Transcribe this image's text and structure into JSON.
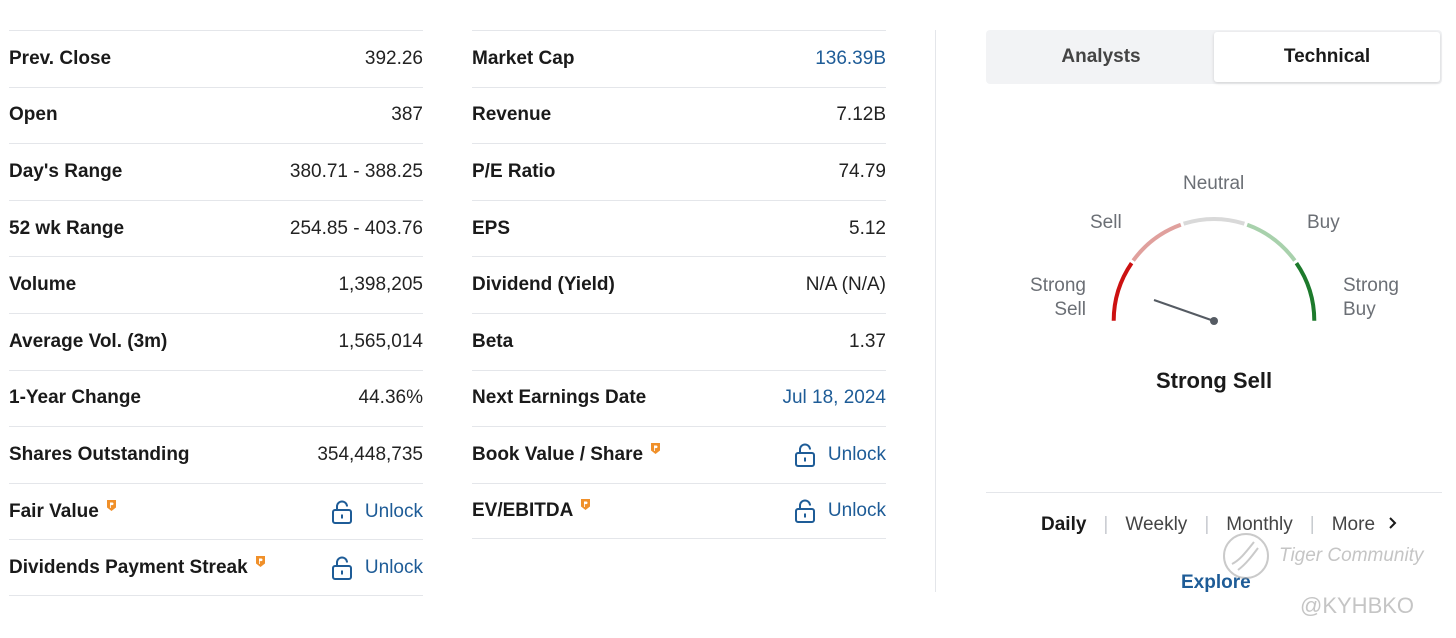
{
  "left_table": [
    {
      "label": "Prev. Close",
      "value": "392.26"
    },
    {
      "label": "Open",
      "value": "387"
    },
    {
      "label": "Day's Range",
      "value": "380.71 - 388.25"
    },
    {
      "label": "52 wk Range",
      "value": "254.85 - 403.76"
    },
    {
      "label": "Volume",
      "value": "1,398,205"
    },
    {
      "label": "Average Vol. (3m)",
      "value": "1,565,014"
    },
    {
      "label": "1-Year Change",
      "value": "44.36%"
    },
    {
      "label": "Shares Outstanding",
      "value": "354,448,735"
    },
    {
      "label": "Fair Value",
      "value": "Unlock"
    },
    {
      "label": "Dividends Payment Streak",
      "value": "Unlock"
    }
  ],
  "mid_table": [
    {
      "label": "Market Cap",
      "value": "136.39B"
    },
    {
      "label": "Revenue",
      "value": "7.12B"
    },
    {
      "label": "P/E Ratio",
      "value": "74.79"
    },
    {
      "label": "EPS",
      "value": "5.12"
    },
    {
      "label": "Dividend (Yield)",
      "value": "N/A (N/A)"
    },
    {
      "label": "Beta",
      "value": "1.37"
    },
    {
      "label": "Next Earnings Date",
      "value": "Jul 18, 2024"
    },
    {
      "label": "Book Value / Share",
      "value": "Unlock"
    },
    {
      "label": "EV/EBITDA",
      "value": "Unlock"
    }
  ],
  "tabs": {
    "analysts": "Analysts",
    "technical": "Technical",
    "active": "technical"
  },
  "gauge": {
    "strong_sell_1": "Strong",
    "strong_sell_2": "Sell",
    "sell": "Sell",
    "neutral": "Neutral",
    "buy": "Buy",
    "strong_buy_1": "Strong",
    "strong_buy_2": "Buy",
    "verdict": "Strong Sell",
    "colors": {
      "strong_sell": "#cc1111",
      "sell": "#e0a09d",
      "neutral": "#d9d9d9",
      "buy": "#a8d1ac",
      "strong_buy": "#1d7a2c",
      "needle": "#555b63"
    }
  },
  "periods": {
    "daily": "Daily",
    "weekly": "Weekly",
    "monthly": "Monthly",
    "more": "More",
    "active": "daily"
  },
  "explore": "Explore",
  "watermark": {
    "brand": "Tiger Community",
    "handle": "@KYHBKO"
  },
  "colors": {
    "link": "#1e5c97",
    "pro_badge": "#f0902a",
    "divider": "#e4e6ea"
  },
  "icons": {
    "lock": "lock-icon",
    "pro": "pro-badge-icon",
    "more": "chevron-right-icon"
  }
}
